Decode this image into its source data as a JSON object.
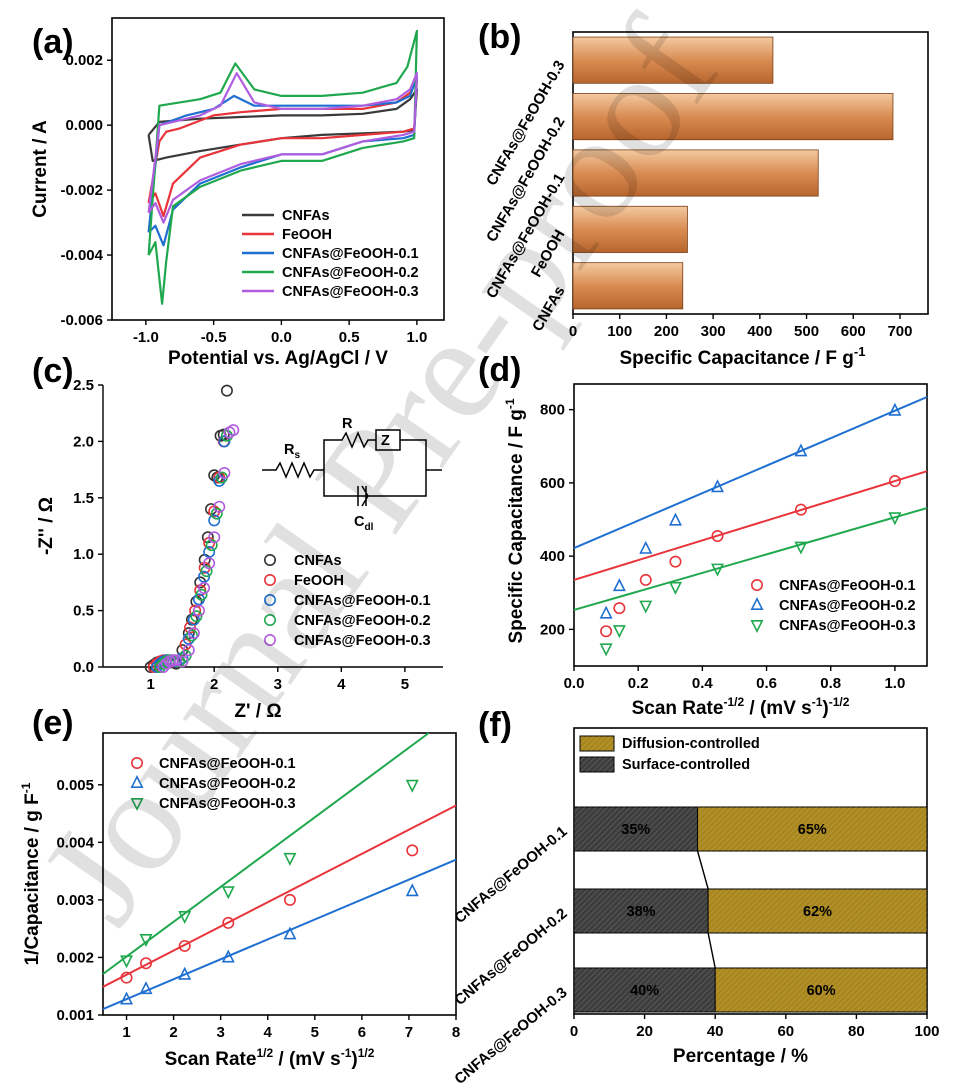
{
  "chart_data": [
    {
      "panel": "(a)",
      "type": "line",
      "xlabel": "Potential vs. Ag/AgCl / V",
      "ylabel": "Current / A",
      "xlim": [
        -1.25,
        1.2
      ],
      "ylim": [
        -0.006,
        0.0033
      ],
      "xticks": [
        -1.0,
        -0.5,
        0.0,
        0.5,
        1.0
      ],
      "xtick_labels": [
        "-1.0",
        "-0.5",
        "0.0",
        "0.5",
        "1.0"
      ],
      "yticks": [
        0.002,
        0.0,
        -0.002,
        -0.004,
        -0.006
      ],
      "ytick_labels": [
        "0.002",
        "0.000",
        "-0.002",
        "-0.004",
        "-0.006"
      ],
      "series": [
        {
          "name": "CNFAs",
          "color": "#3a3a3a",
          "x": [
            -0.98,
            -0.9,
            -0.6,
            -0.3,
            0.0,
            0.3,
            0.6,
            0.85,
            0.95,
            1.0,
            0.98,
            0.9,
            0.6,
            0.3,
            0.0,
            -0.3,
            -0.6,
            -0.85,
            -0.95,
            -0.98
          ],
          "y": [
            -0.0003,
            0.0001,
            0.0002,
            0.00025,
            0.0003,
            0.0003,
            0.00035,
            0.0005,
            0.0008,
            0.0011,
            -0.00015,
            -0.0002,
            -0.00025,
            -0.0003,
            -0.0004,
            -0.0006,
            -0.0008,
            -0.001,
            -0.0011,
            -0.0003
          ]
        },
        {
          "name": "FeOOH",
          "color": "#e8343a",
          "x": [
            -0.98,
            -0.9,
            -0.85,
            -0.75,
            -0.5,
            -0.3,
            0.0,
            0.3,
            0.6,
            0.85,
            0.95,
            1.0,
            0.98,
            0.9,
            0.6,
            0.3,
            0.0,
            -0.3,
            -0.6,
            -0.8,
            -0.87,
            -0.93,
            -0.98
          ],
          "y": [
            -0.0024,
            -0.0005,
            -0.0002,
            -0.0001,
            0.0003,
            0.0004,
            0.0005,
            0.0005,
            0.0005,
            0.0007,
            0.001,
            0.0014,
            -0.0001,
            -0.0002,
            -0.0003,
            -0.0004,
            -0.0004,
            -0.0006,
            -0.001,
            -0.0018,
            -0.0028,
            -0.0021,
            -0.0024
          ]
        },
        {
          "name": "CNFAs@FeOOH-0.1",
          "color": "#1f6fd1",
          "x": [
            -0.98,
            -0.9,
            -0.7,
            -0.5,
            -0.35,
            -0.2,
            0.0,
            0.3,
            0.6,
            0.85,
            0.95,
            1.0,
            0.98,
            0.9,
            0.6,
            0.3,
            0.0,
            -0.3,
            -0.6,
            -0.8,
            -0.87,
            -0.93,
            -0.98
          ],
          "y": [
            -0.0033,
            0.0,
            0.0003,
            0.0005,
            0.0009,
            0.0006,
            0.0006,
            0.0006,
            0.0006,
            0.0007,
            0.0009,
            0.0015,
            -0.0003,
            -0.0004,
            -0.0005,
            -0.0009,
            -0.0009,
            -0.0013,
            -0.0018,
            -0.0026,
            -0.0037,
            -0.0031,
            -0.0033
          ]
        },
        {
          "name": "CNFAs@FeOOH-0.2",
          "color": "#20a84e",
          "x": [
            -0.98,
            -0.9,
            -0.6,
            -0.45,
            -0.34,
            -0.2,
            0.0,
            0.3,
            0.6,
            0.85,
            0.93,
            1.0,
            0.98,
            0.9,
            0.6,
            0.3,
            0.0,
            -0.3,
            -0.6,
            -0.8,
            -0.85,
            -0.88,
            -0.93,
            -0.98
          ],
          "y": [
            -0.004,
            0.0006,
            0.0008,
            0.001,
            0.0019,
            0.0011,
            0.0009,
            0.0009,
            0.001,
            0.0013,
            0.0018,
            0.0029,
            -0.0004,
            -0.0005,
            -0.0007,
            -0.0011,
            -0.0011,
            -0.0014,
            -0.0019,
            -0.0025,
            -0.0042,
            -0.0055,
            -0.0036,
            -0.004
          ]
        },
        {
          "name": "CNFAs@FeOOH-0.3",
          "color": "#b05de0",
          "x": [
            -0.98,
            -0.9,
            -0.6,
            -0.45,
            -0.33,
            -0.2,
            0.0,
            0.3,
            0.6,
            0.85,
            0.95,
            1.0,
            0.98,
            0.9,
            0.6,
            0.3,
            0.0,
            -0.3,
            -0.6,
            -0.8,
            -0.87,
            -0.93,
            -0.98
          ],
          "y": [
            -0.0027,
            0.0,
            0.0003,
            0.0006,
            0.0016,
            0.0007,
            0.0005,
            0.0005,
            0.0006,
            0.0008,
            0.0011,
            0.0016,
            -0.0002,
            -0.0003,
            -0.0005,
            -0.0009,
            -0.0009,
            -0.0012,
            -0.0017,
            -0.0023,
            -0.003,
            -0.0024,
            -0.0027
          ]
        }
      ]
    },
    {
      "panel": "(b)",
      "type": "bar",
      "orientation": "horizontal",
      "categories": [
        "CNFAs",
        "FeOOH",
        "CNFAs@FeOOH-0.1",
        "CNFAs@FeOOH-0.2",
        "CNFAs@FeOOH-0.3"
      ],
      "values": [
        235,
        245,
        525,
        685,
        428
      ],
      "xlabel": "Specific Capacitance / F g",
      "xlabel_sup": "-1",
      "xlim": [
        0,
        760
      ],
      "xticks": [
        0,
        100,
        200,
        300,
        400,
        500,
        600,
        700
      ],
      "xtick_labels": [
        "0",
        "100",
        "200",
        "300",
        "400",
        "500",
        "600",
        "700"
      ],
      "bar_color": "#d98c52"
    },
    {
      "panel": "(c)",
      "type": "scatter",
      "xlabel": "Z' / Ω",
      "ylabel": "-Z'' / Ω",
      "xlim": [
        0.25,
        5.6
      ],
      "ylim": [
        0,
        2.5
      ],
      "xticks": [
        1,
        2,
        3,
        4,
        5
      ],
      "xtick_labels": [
        "1",
        "2",
        "3",
        "4",
        "5"
      ],
      "yticks": [
        0.0,
        0.5,
        1.0,
        1.5,
        2.0,
        2.5
      ],
      "ytick_labels": [
        "0.0",
        "0.5",
        "1.0",
        "1.5",
        "2.0",
        "2.5"
      ],
      "circuit_labels": [
        "R",
        "s",
        "R",
        "Z",
        "C",
        "dl"
      ],
      "series": [
        {
          "name": "CNFAs",
          "color": "#333333",
          "x": [
            1.0,
            1.05,
            1.1,
            1.15,
            1.2,
            1.3,
            1.4,
            1.5,
            1.6,
            1.65,
            1.72,
            1.78,
            1.85,
            1.9,
            1.95,
            2.0,
            2.05,
            2.1,
            2.15,
            2.2
          ],
          "y": [
            0.0,
            0.02,
            0.04,
            0.05,
            0.05,
            0.04,
            0.03,
            0.15,
            0.3,
            0.42,
            0.58,
            0.75,
            0.95,
            1.15,
            1.4,
            1.7,
            1.68,
            2.05,
            2.06,
            2.45
          ]
        },
        {
          "name": "FeOOH",
          "color": "#e8343a",
          "x": [
            1.05,
            1.1,
            1.15,
            1.2,
            1.25,
            1.35,
            1.45,
            1.55,
            1.62,
            1.7,
            1.78,
            1.85,
            1.92,
            2.0,
            2.08,
            2.15
          ],
          "y": [
            0.0,
            0.03,
            0.05,
            0.06,
            0.06,
            0.05,
            0.05,
            0.2,
            0.35,
            0.5,
            0.68,
            0.88,
            1.1,
            1.38,
            1.68,
            2.0
          ]
        },
        {
          "name": "CNFAs@FeOOH-0.1",
          "color": "#1f6fd1",
          "x": [
            1.1,
            1.15,
            1.2,
            1.25,
            1.3,
            1.4,
            1.5,
            1.6,
            1.68,
            1.76,
            1.84,
            1.92,
            2.0,
            2.08,
            2.16
          ],
          "y": [
            0.0,
            0.03,
            0.05,
            0.06,
            0.06,
            0.05,
            0.08,
            0.25,
            0.42,
            0.6,
            0.8,
            1.02,
            1.3,
            1.65,
            2.0
          ]
        },
        {
          "name": "CNFAs@FeOOH-0.2",
          "color": "#20a84e",
          "x": [
            1.15,
            1.2,
            1.25,
            1.3,
            1.35,
            1.45,
            1.55,
            1.65,
            1.72,
            1.8,
            1.88,
            1.96,
            2.04,
            2.12,
            2.2
          ],
          "y": [
            0.0,
            0.03,
            0.05,
            0.06,
            0.06,
            0.05,
            0.1,
            0.28,
            0.45,
            0.64,
            0.85,
            1.08,
            1.36,
            1.68,
            2.05
          ]
        },
        {
          "name": "CNFAs@FeOOH-0.3",
          "color": "#b05de0",
          "x": [
            1.2,
            1.25,
            1.3,
            1.35,
            1.4,
            1.5,
            1.6,
            1.68,
            1.76,
            1.84,
            1.92,
            2.0,
            2.08,
            2.16,
            2.24,
            2.3
          ],
          "y": [
            0.0,
            0.03,
            0.05,
            0.06,
            0.06,
            0.05,
            0.15,
            0.3,
            0.5,
            0.7,
            0.92,
            1.15,
            1.42,
            1.72,
            2.08,
            2.1
          ]
        }
      ]
    },
    {
      "panel": "(d)",
      "type": "scatter",
      "xlabel": "Scan Rate",
      "xlabel_sup": "-1/2",
      "xlabel_tail": " / (mV s",
      "xlabel_sup2": "-1",
      "xlabel_close": ")",
      "xlabel_sup3": "-1/2",
      "ylabel": "Specific Capacitance / F g",
      "ylabel_sup": "-1",
      "xlim": [
        0,
        1.1
      ],
      "ylim": [
        100,
        870
      ],
      "xticks": [
        0.0,
        0.2,
        0.4,
        0.6,
        0.8,
        1.0
      ],
      "xtick_labels": [
        "0.0",
        "0.2",
        "0.4",
        "0.6",
        "0.8",
        "1.0"
      ],
      "yticks": [
        200,
        400,
        600,
        800
      ],
      "ytick_labels": [
        "200",
        "400",
        "600",
        "800"
      ],
      "series": [
        {
          "name": "CNFAs@FeOOH-0.1",
          "color": "#e8343a",
          "marker": "circle",
          "x": [
            0.1,
            0.1414,
            0.2236,
            0.3162,
            0.4472,
            0.7071,
            1.0
          ],
          "y": [
            195,
            258,
            335,
            385,
            455,
            527,
            605
          ],
          "fit": {
            "slope": 270,
            "intercept": 335
          }
        },
        {
          "name": "CNFAs@FeOOH-0.2",
          "color": "#1f6fd1",
          "marker": "triangle-up",
          "x": [
            0.1,
            0.1414,
            0.2236,
            0.3162,
            0.4472,
            0.7071,
            1.0
          ],
          "y": [
            243,
            318,
            420,
            497,
            588,
            686,
            797
          ],
          "fit": {
            "slope": 375,
            "intercept": 422
          }
        },
        {
          "name": "CNFAs@FeOOH-0.3",
          "color": "#20a84e",
          "marker": "triangle-down",
          "x": [
            0.1,
            0.1414,
            0.2236,
            0.3162,
            0.4472,
            0.7071,
            1.0
          ],
          "y": [
            148,
            198,
            265,
            316,
            366,
            426,
            506
          ],
          "fit": {
            "slope": 253,
            "intercept": 253
          }
        }
      ]
    },
    {
      "panel": "(e)",
      "type": "scatter",
      "xlabel": "Scan Rate",
      "xlabel_sup": "1/2",
      "xlabel_tail": " / (mV s",
      "xlabel_sup2": "-1",
      "xlabel_close": ")",
      "xlabel_sup3": "1/2",
      "ylabel": "1/Capacitance / g F",
      "ylabel_sup": "-1",
      "xlim": [
        0.5,
        8
      ],
      "ylim": [
        0.001,
        0.0059
      ],
      "xticks": [
        1,
        2,
        3,
        4,
        5,
        6,
        7,
        8
      ],
      "xtick_labels": [
        "1",
        "2",
        "3",
        "4",
        "5",
        "6",
        "7",
        "8"
      ],
      "yticks": [
        0.001,
        0.002,
        0.003,
        0.004,
        0.005
      ],
      "ytick_labels": [
        "0.001",
        "0.002",
        "0.003",
        "0.004",
        "0.005"
      ],
      "series": [
        {
          "name": "CNFAs@FeOOH-0.1",
          "color": "#e8343a",
          "marker": "circle",
          "x": [
            1.0,
            1.414,
            2.236,
            3.162,
            4.472,
            7.071
          ],
          "y": [
            0.00165,
            0.0019,
            0.0022,
            0.0026,
            0.003,
            0.00386
          ],
          "fit": {
            "slope": 0.00042,
            "intercept": 0.00128
          }
        },
        {
          "name": "CNFAs@FeOOH-0.2",
          "color": "#1f6fd1",
          "marker": "triangle-up",
          "x": [
            1.0,
            1.414,
            2.236,
            3.162,
            4.472,
            7.071
          ],
          "y": [
            0.00127,
            0.00145,
            0.0017,
            0.002,
            0.0024,
            0.00315
          ],
          "fit": {
            "slope": 0.000346,
            "intercept": 0.00093
          }
        },
        {
          "name": "CNFAs@FeOOH-0.3",
          "color": "#20a84e",
          "marker": "triangle-down",
          "x": [
            1.0,
            1.414,
            2.236,
            3.162,
            4.472,
            7.071
          ],
          "y": [
            0.00195,
            0.00232,
            0.00272,
            0.00315,
            0.00373,
            0.005
          ],
          "fit": {
            "slope": 0.000605,
            "intercept": 0.00141
          }
        }
      ]
    },
    {
      "panel": "(f)",
      "type": "bar",
      "orientation": "horizontal-stacked",
      "categories": [
        "CNFAs@FeOOH-0.1",
        "CNFAs@FeOOH-0.2",
        "CNFAs@FeOOH-0.3"
      ],
      "series": [
        {
          "name": "Surface-controlled",
          "color": "#3d3d3d",
          "values": [
            35,
            38,
            40
          ],
          "labels": [
            "35%",
            "38%",
            "40%"
          ]
        },
        {
          "name": "Diffusion-controlled",
          "color": "#a9871c",
          "values": [
            65,
            62,
            60
          ],
          "labels": [
            "65%",
            "62%",
            "60%"
          ]
        }
      ],
      "xlabel": "Percentage / %",
      "xlim": [
        0,
        100
      ],
      "xticks": [
        0,
        20,
        40,
        60,
        80,
        100
      ],
      "xtick_labels": [
        "0",
        "20",
        "40",
        "60",
        "80",
        "100"
      ]
    }
  ],
  "panel_labels": [
    "(a)",
    "(b)",
    "(c)",
    "(d)",
    "(e)",
    "(f)"
  ],
  "watermark": "Journal Pre-proof"
}
